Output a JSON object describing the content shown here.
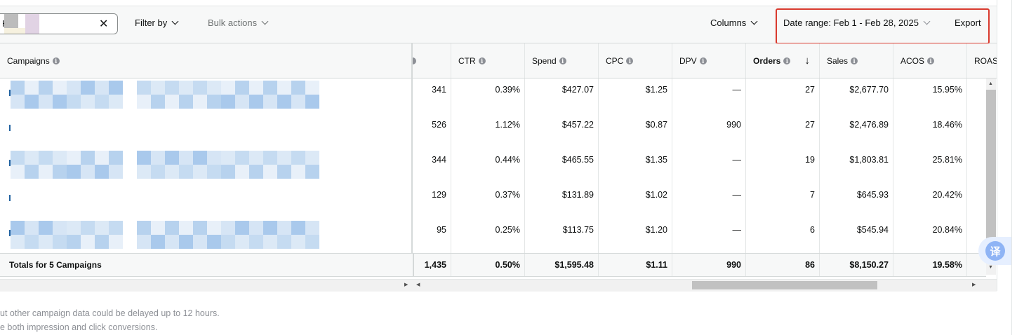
{
  "toolbar": {
    "search_value": "H",
    "clear_icon": "✕",
    "filter_label": "Filter by",
    "bulk_label": "Bulk actions",
    "columns_label": "Columns",
    "date_range_label": "Date range: Feb 1 - Feb 28, 2025",
    "export_label": "Export"
  },
  "columns": {
    "campaigns": "Campaigns",
    "ctr": "CTR",
    "spend": "Spend",
    "cpc": "CPC",
    "dpv": "DPV",
    "orders": "Orders",
    "sort_icon": "↓",
    "sales": "Sales",
    "acos": "ACOS",
    "roas": "ROAS"
  },
  "info_icon": "i",
  "rows": [
    {
      "clicks": "341",
      "ctr": "0.39%",
      "spend": "$427.07",
      "cpc": "$1.25",
      "dpv": "—",
      "orders": "27",
      "sales": "$2,677.70",
      "acos": "15.95%"
    },
    {
      "clicks": "526",
      "ctr": "1.12%",
      "spend": "$457.22",
      "cpc": "$0.87",
      "dpv": "990",
      "orders": "27",
      "sales": "$2,476.89",
      "acos": "18.46%"
    },
    {
      "clicks": "344",
      "ctr": "0.44%",
      "spend": "$465.55",
      "cpc": "$1.35",
      "dpv": "—",
      "orders": "19",
      "sales": "$1,803.81",
      "acos": "25.81%"
    },
    {
      "clicks": "129",
      "ctr": "0.37%",
      "spend": "$131.89",
      "cpc": "$1.02",
      "dpv": "—",
      "orders": "7",
      "sales": "$645.93",
      "acos": "20.42%"
    },
    {
      "clicks": "95",
      "ctr": "0.25%",
      "spend": "$113.75",
      "cpc": "$1.20",
      "dpv": "—",
      "orders": "6",
      "sales": "$545.94",
      "acos": "20.84%"
    }
  ],
  "totals": {
    "label": "Totals for 5 Campaigns",
    "clicks": "1,435",
    "ctr": "0.50%",
    "spend": "$1,595.48",
    "cpc": "$1.11",
    "dpv": "990",
    "orders": "86",
    "sales": "$8,150.27",
    "acos": "19.58%"
  },
  "notes": {
    "line1": "ut other campaign data could be delayed up to 12 hours.",
    "line2": "e both impression and click conversions."
  },
  "translate_glyph": "译",
  "colors": {
    "highlight": "#d93a2e",
    "link": "#2162a1",
    "blur": "#b7d2ee"
  }
}
